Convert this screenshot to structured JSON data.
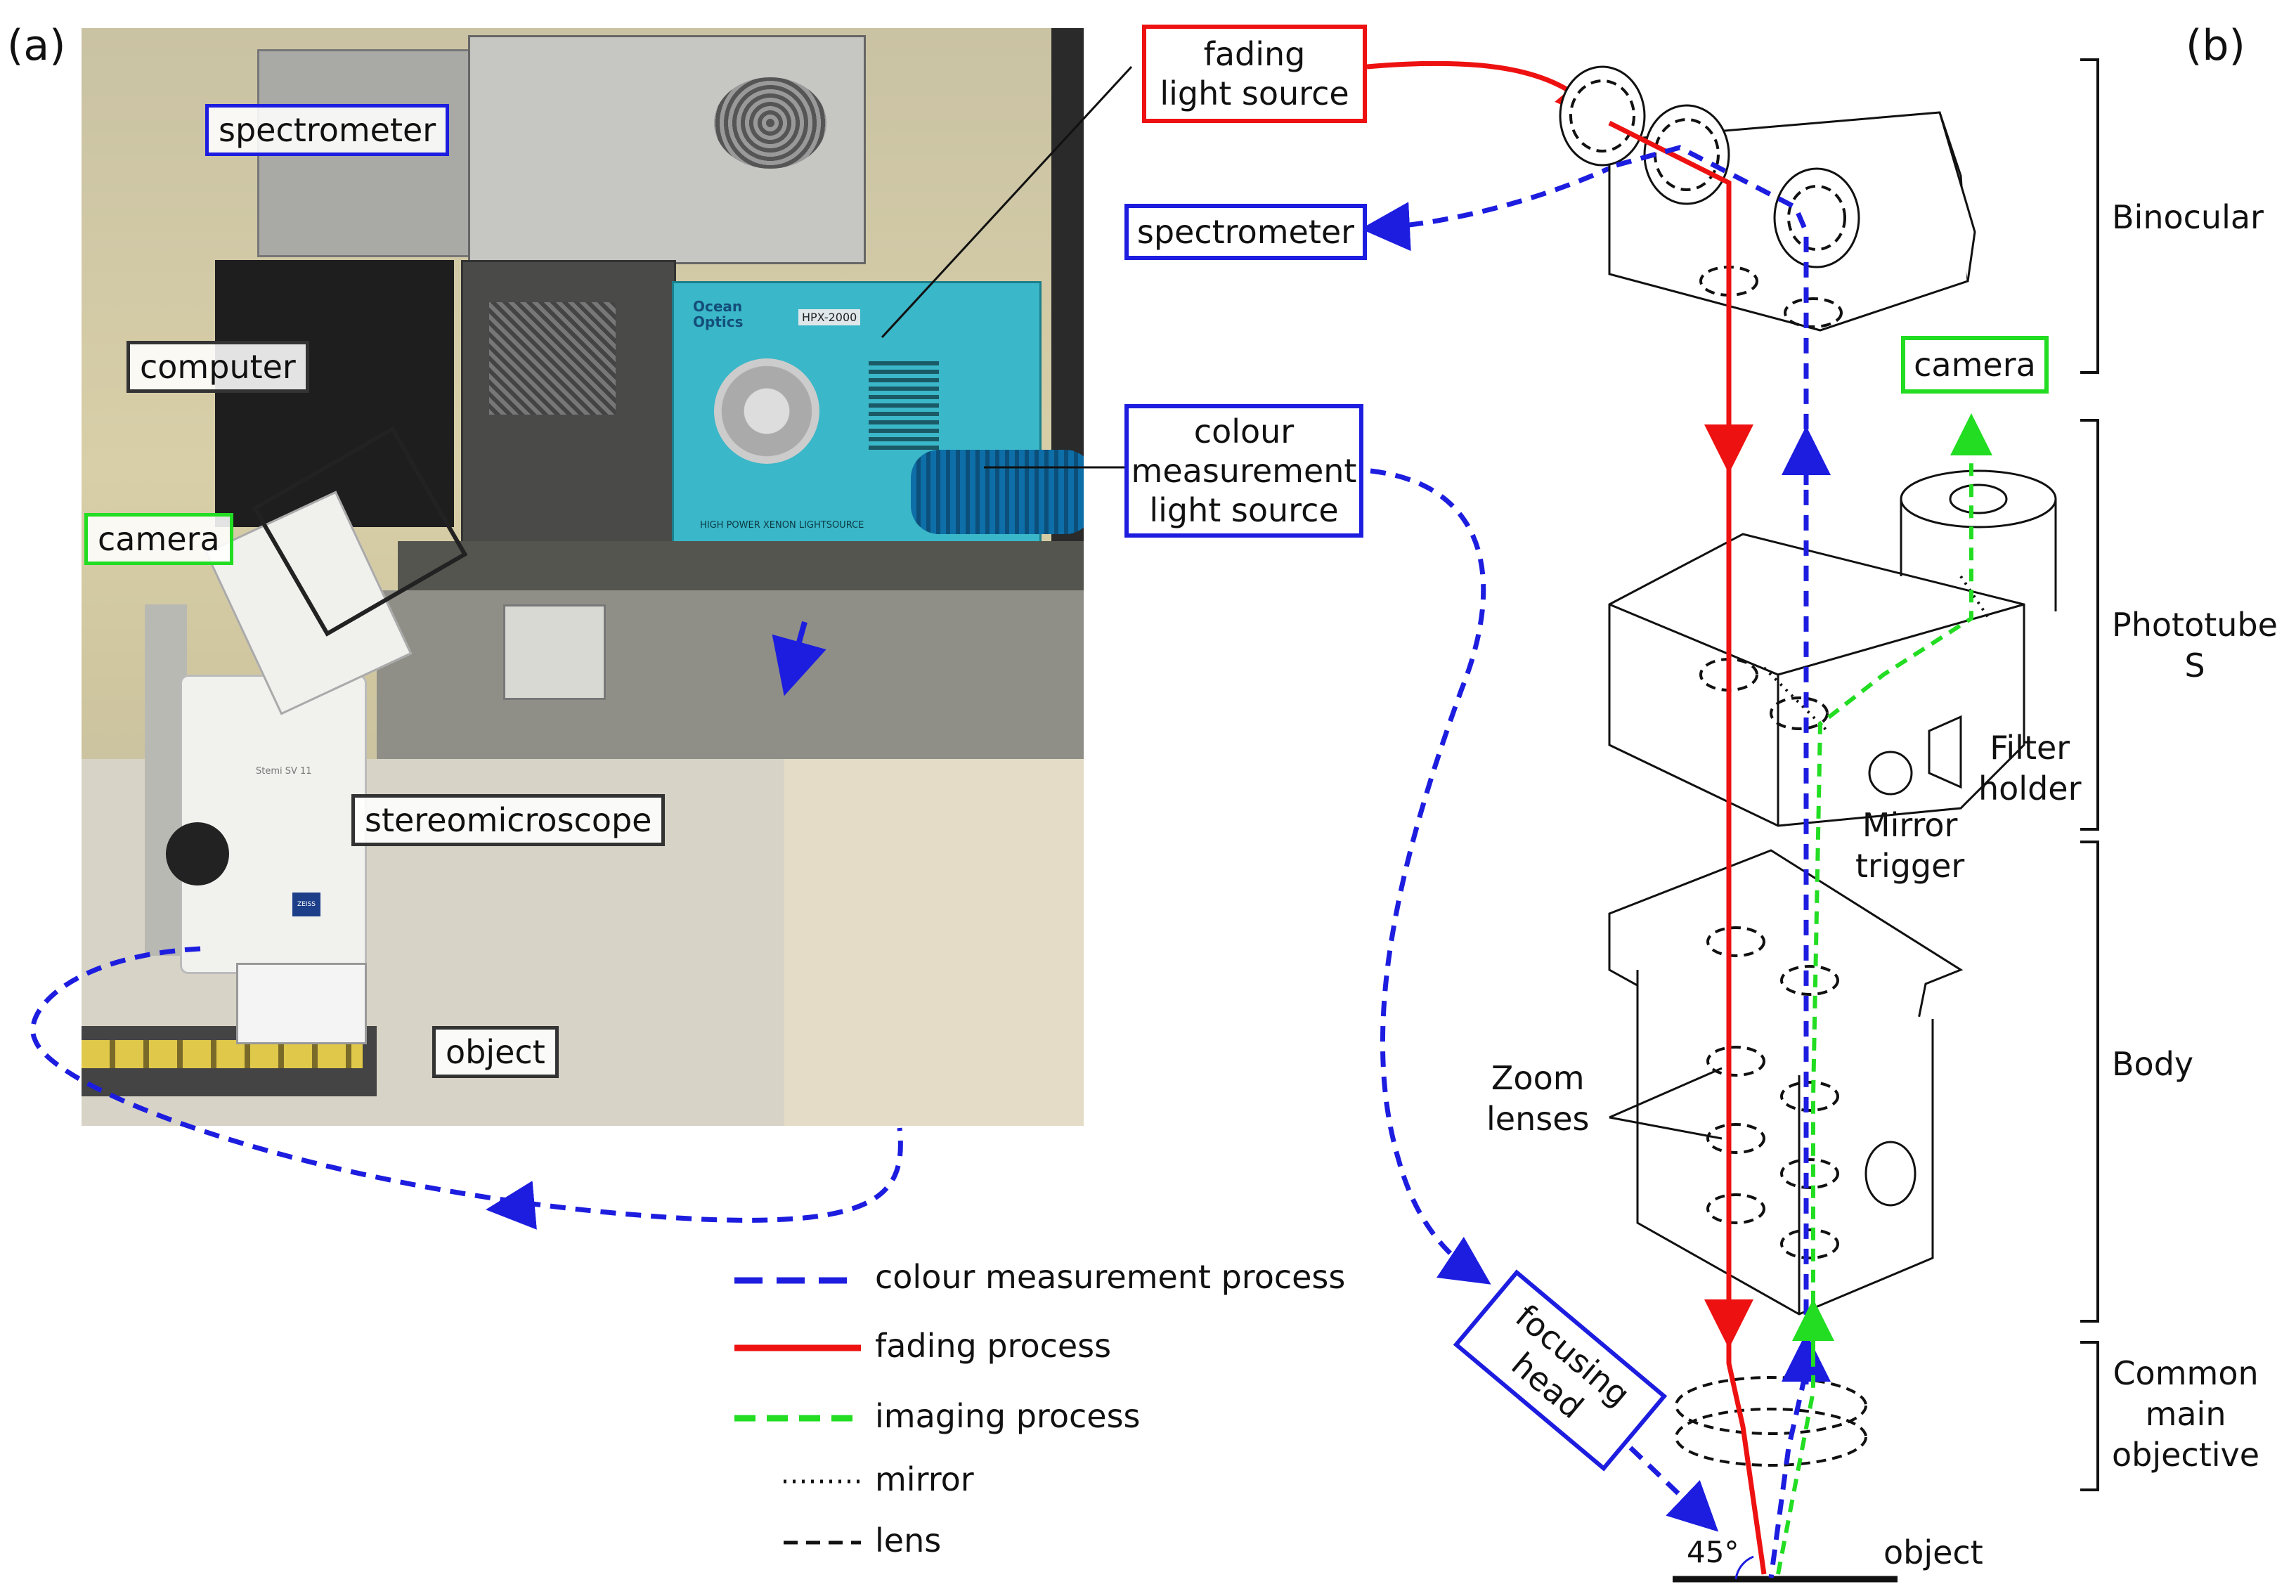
{
  "panel_labels": {
    "a": "(a)",
    "b": "(b)"
  },
  "photo_labels": {
    "spectrometer": "spectrometer",
    "computer": "computer",
    "camera": "camera",
    "stereomicroscope": "stereomicroscope",
    "object": "object"
  },
  "photo_text": {
    "ocean_optics": "Ocean Optics",
    "hpx_model": "HPX-2000",
    "lightsource_caption": "HIGH POWER XENON LIGHTSOURCE",
    "microscope_model": "Stemi SV 11",
    "zeiss": "ZEISS"
  },
  "callouts": {
    "fading_light_source": [
      "fading",
      "light source"
    ],
    "spectrometer": "spectrometer",
    "colour_measurement_light_source": [
      "colour",
      "measurement",
      "light source"
    ],
    "camera": "camera",
    "focusing_head": [
      "focusing",
      "head"
    ]
  },
  "components": {
    "filter_holder": [
      "Filter",
      "holder"
    ],
    "mirror_trigger": [
      "Mirror",
      "trigger"
    ],
    "zoom_lenses": [
      "Zoom",
      "lenses"
    ],
    "angle": "45°",
    "object": "object"
  },
  "sections": {
    "binocular": "Binocular",
    "phototubes": [
      "Phototube",
      "S"
    ],
    "body": "Body",
    "common_main_objective": [
      "Common",
      "main",
      "objective"
    ]
  },
  "legend": [
    {
      "label": "colour measurement process",
      "color": "#1d1de0",
      "style": "dashed"
    },
    {
      "label": "fading process",
      "color": "#ee1111",
      "style": "solid"
    },
    {
      "label": "imaging process",
      "color": "#22dd22",
      "style": "dashed"
    },
    {
      "label": "mirror",
      "color": "#111111",
      "style": "dotted"
    },
    {
      "label": "lens",
      "color": "#111111",
      "style": "dashed"
    }
  ],
  "colors": {
    "blue": "#1d1de0",
    "red": "#ee1111",
    "green": "#22dd22",
    "black": "#111111"
  }
}
